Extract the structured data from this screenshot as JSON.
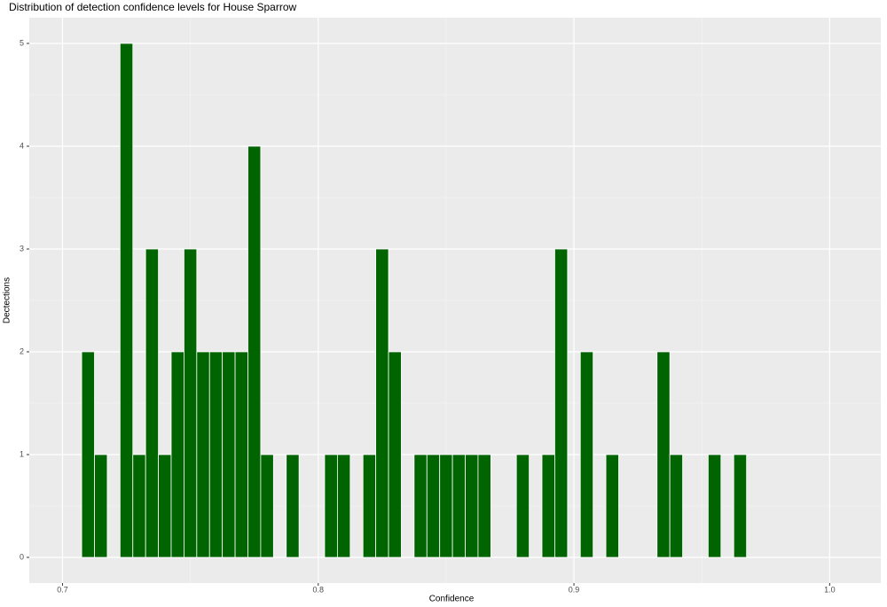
{
  "chart_data": {
    "type": "histogram",
    "title": "Distribution of detection confidence levels for House Sparrow",
    "x_label": "Confidence",
    "y_label": "Dectections",
    "bins": [
      0.7075,
      0.7125,
      0.7175,
      0.7225,
      0.7275,
      0.7325,
      0.7375,
      0.7425,
      0.7475,
      0.7525,
      0.7575,
      0.7625,
      0.7675,
      0.7725,
      0.7775,
      0.7825,
      0.7875,
      0.7925,
      0.7975,
      0.8025,
      0.8075,
      0.8125,
      0.8175,
      0.8225,
      0.8275,
      0.8325,
      0.8375,
      0.8425,
      0.8475,
      0.8525,
      0.8575,
      0.8625,
      0.8675,
      0.8725,
      0.8775,
      0.8825,
      0.8875,
      0.8925,
      0.8975,
      0.9025,
      0.9075,
      0.9125,
      0.9175,
      0.9225,
      0.9275,
      0.9325,
      0.9375,
      0.9425,
      0.9475,
      0.9525,
      0.9575,
      0.9625,
      0.9675
    ],
    "values": [
      2,
      1,
      0,
      5,
      1,
      3,
      1,
      2,
      3,
      2,
      2,
      2,
      2,
      4,
      1,
      0,
      1,
      0,
      0,
      1,
      1,
      0,
      1,
      3,
      2,
      0,
      1,
      1,
      1,
      1,
      1,
      1,
      0,
      0,
      1,
      0,
      1,
      3,
      0,
      2,
      0,
      1,
      0,
      0,
      0,
      2,
      1,
      0,
      0,
      1,
      0,
      1
    ],
    "color": "#006400",
    "xlim": [
      0.687,
      1.02
    ],
    "xticks": [
      0.7,
      0.8,
      0.9,
      {
        "value": 1.0,
        "label": "1.0"
      }
    ],
    "ylim": [
      -0.25,
      5.25
    ],
    "yticks": [
      0,
      1,
      2,
      3,
      4,
      5
    ],
    "grid": true
  }
}
